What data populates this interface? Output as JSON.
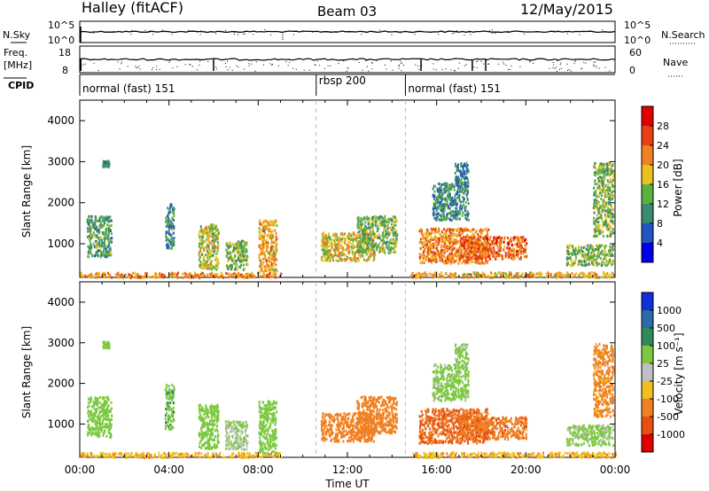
{
  "header": {
    "site": "Halley (fitACF)",
    "beam": "Beam 03",
    "date": "12/May/2015"
  },
  "nsky_panel": {
    "left_label": "N.Sky",
    "left_ticks": [
      "10^5",
      "10^0"
    ],
    "right_ticks": [
      "10^5",
      "10^0"
    ],
    "right_label": "N.Search"
  },
  "freq_panel": {
    "left_label_1": "Freq.",
    "left_label_2": "[MHz]",
    "left_ticks": [
      "18",
      "8"
    ],
    "right_ticks": [
      "60",
      "0"
    ],
    "right_label": "Nave"
  },
  "cpid": {
    "label": "CPID",
    "segments": [
      {
        "name": "normal (fast) 151",
        "start_hour": 0.0
      },
      {
        "name": "rbsp 200",
        "start_hour": 10.6
      },
      {
        "name": "normal (fast) 151",
        "start_hour": 14.6
      }
    ]
  },
  "power_panel": {
    "ylabel": "Slant Range [km]",
    "yticks": [
      "1000",
      "2000",
      "3000",
      "4000"
    ],
    "colorbar_label": "Power [dB]",
    "colorbar_ticks": [
      "4",
      "8",
      "12",
      "16",
      "20",
      "24",
      "28"
    ],
    "colors": [
      "#0000e8",
      "#2255c0",
      "#3c8a70",
      "#5cb040",
      "#e8c020",
      "#f08020",
      "#e84010",
      "#e00000"
    ]
  },
  "velocity_panel": {
    "ylabel": "Slant Range [km]",
    "yticks": [
      "1000",
      "2000",
      "3000",
      "4000"
    ],
    "colorbar_label": "Velocity [m s⁻¹]",
    "colorbar_ticks": [
      "1000",
      "500",
      "100",
      "25",
      "-25",
      "-100",
      "-500",
      "-1000"
    ],
    "colors": [
      "#1030d8",
      "#2a6aa8",
      "#2e8a5a",
      "#7cc840",
      "#c0c0c0",
      "#f0c020",
      "#f08020",
      "#e85010",
      "#e00000"
    ]
  },
  "time_axis": {
    "ticks": [
      "00:00",
      "04:00",
      "08:00",
      "12:00",
      "16:00",
      "20:00",
      "00:00"
    ],
    "label": "Time UT"
  },
  "chart_data": {
    "type": "heatmap",
    "x_range_hours": [
      0,
      24
    ],
    "y_range_km": [
      180,
      4500
    ],
    "mode_change_hours": [
      10.6,
      14.6
    ],
    "scatter_regions": [
      {
        "t0": 0.0,
        "t1": 9.0,
        "r0": 200,
        "r1": 320,
        "power": 22,
        "velocity": -80
      },
      {
        "t0": 0.3,
        "t1": 1.4,
        "r0": 700,
        "r1": 1700,
        "power": 12,
        "velocity": 60
      },
      {
        "t0": 1.0,
        "t1": 1.3,
        "r0": 2900,
        "r1": 3050,
        "power": 10,
        "velocity": 60
      },
      {
        "t0": 3.8,
        "t1": 4.2,
        "r0": 900,
        "r1": 2000,
        "power": 10,
        "velocity": 80
      },
      {
        "t0": 5.3,
        "t1": 6.2,
        "r0": 400,
        "r1": 1500,
        "power": 16,
        "velocity": 60
      },
      {
        "t0": 6.5,
        "t1": 7.5,
        "r0": 400,
        "r1": 1100,
        "power": 14,
        "velocity": 30
      },
      {
        "t0": 8.0,
        "t1": 8.8,
        "r0": 300,
        "r1": 1600,
        "power": 20,
        "velocity": 60
      },
      {
        "t0": 10.8,
        "t1": 13.2,
        "r0": 600,
        "r1": 1300,
        "power": 18,
        "velocity": -250
      },
      {
        "t0": 12.4,
        "t1": 14.2,
        "r0": 800,
        "r1": 1700,
        "power": 14,
        "velocity": -250
      },
      {
        "t0": 15.2,
        "t1": 18.3,
        "r0": 550,
        "r1": 1400,
        "power": 22,
        "velocity": -500
      },
      {
        "t0": 17.0,
        "t1": 20.0,
        "r0": 650,
        "r1": 1200,
        "power": 24,
        "velocity": -400
      },
      {
        "t0": 15.8,
        "t1": 17.4,
        "r0": 1600,
        "r1": 2500,
        "power": 10,
        "velocity": 50
      },
      {
        "t0": 16.8,
        "t1": 17.4,
        "r0": 2400,
        "r1": 3000,
        "power": 9,
        "velocity": 40
      },
      {
        "t0": 14.8,
        "t1": 24.0,
        "r0": 200,
        "r1": 330,
        "power": 20,
        "velocity": -80
      },
      {
        "t0": 21.8,
        "t1": 23.9,
        "r0": 500,
        "r1": 1000,
        "power": 14,
        "velocity": 40
      },
      {
        "t0": 23.0,
        "t1": 23.9,
        "r0": 1200,
        "r1": 3000,
        "power": 14,
        "velocity": -150
      }
    ]
  }
}
